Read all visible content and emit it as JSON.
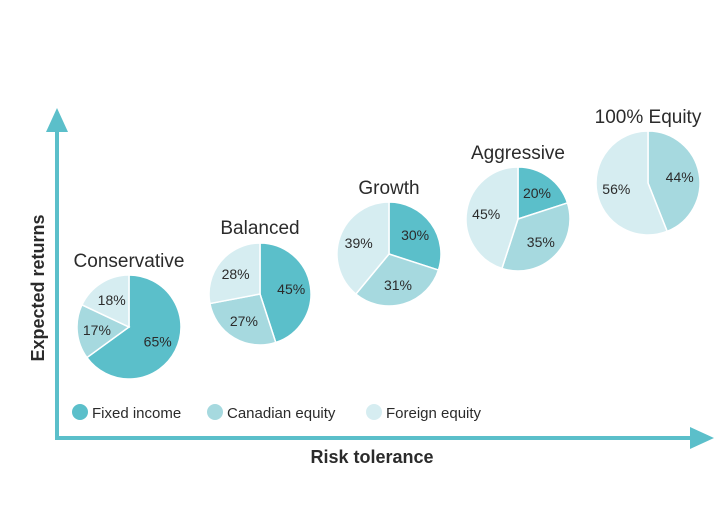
{
  "chart_data": {
    "type": "pie",
    "title": "",
    "xlabel": "Risk tolerance",
    "ylabel": "Expected returns",
    "legend_position": "bottom-left",
    "legend": [
      {
        "name": "Fixed income",
        "color": "#5bbfca"
      },
      {
        "name": "Canadian equity",
        "color": "#a6d9df"
      },
      {
        "name": "Foreign equity",
        "color": "#d6edf1"
      }
    ],
    "portfolios": [
      {
        "name": "Conservative",
        "slices": [
          {
            "category": "Fixed income",
            "value": 65,
            "label": "65%"
          },
          {
            "category": "Canadian equity",
            "value": 17,
            "label": "17%"
          },
          {
            "category": "Foreign equity",
            "value": 18,
            "label": "18%"
          }
        ]
      },
      {
        "name": "Balanced",
        "slices": [
          {
            "category": "Fixed income",
            "value": 45,
            "label": "45%"
          },
          {
            "category": "Canadian equity",
            "value": 27,
            "label": "27%"
          },
          {
            "category": "Foreign equity",
            "value": 28,
            "label": "28%"
          }
        ]
      },
      {
        "name": "Growth",
        "slices": [
          {
            "category": "Fixed income",
            "value": 30,
            "label": "30%"
          },
          {
            "category": "Canadian equity",
            "value": 31,
            "label": "31%"
          },
          {
            "category": "Foreign equity",
            "value": 39,
            "label": "39%"
          }
        ]
      },
      {
        "name": "Aggressive",
        "slices": [
          {
            "category": "Fixed income",
            "value": 20,
            "label": "20%"
          },
          {
            "category": "Canadian equity",
            "value": 35,
            "label": "35%"
          },
          {
            "category": "Foreign equity",
            "value": 45,
            "label": "45%"
          }
        ]
      },
      {
        "name": "100% Equity",
        "slices": [
          {
            "category": "Canadian equity",
            "value": 44,
            "label": "44%"
          },
          {
            "category": "Foreign equity",
            "value": 56,
            "label": "56%"
          }
        ]
      }
    ],
    "colors": {
      "axis": "#5bbfca",
      "text": "#2b2b2b"
    }
  }
}
